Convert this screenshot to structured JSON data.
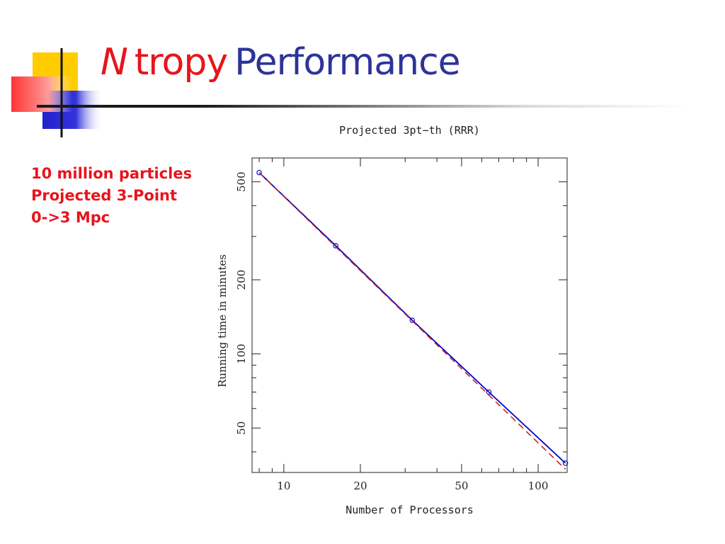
{
  "slide": {
    "title_n": "N",
    "title_tropy": "tropy",
    "title_performance": "Performance",
    "side_lines": [
      "10 million particles",
      "Projected 3-Point",
      "0->3 Mpc"
    ]
  },
  "colors": {
    "title_red": "#e8141c",
    "title_blue": "#2e3399",
    "measured_line": "#0000cc",
    "ideal_line": "#cc2222",
    "logo_yellow": "#ffcc00",
    "logo_blue": "#2222cc"
  },
  "chart_data": {
    "type": "line",
    "title": "Projected 3pt−th (RRR)",
    "xlabel": "Number of Processors",
    "ylabel": "Running time in minutes",
    "x_scale": "log",
    "y_scale": "log",
    "xlim": [
      7.5,
      130
    ],
    "ylim": [
      33,
      625
    ],
    "x_ticks": [
      10,
      20,
      50,
      100
    ],
    "y_ticks": [
      50,
      100,
      200,
      500
    ],
    "grid": false,
    "legend": "none",
    "series": [
      {
        "style": "solid-with-circle-markers",
        "color": "#0000cc",
        "x": [
          8,
          16,
          32,
          64,
          128
        ],
        "y": [
          545,
          275,
          137,
          70,
          36
        ]
      },
      {
        "style": "dashed",
        "color": "#cc2222",
        "x": [
          8,
          128
        ],
        "y": [
          545,
          34
        ]
      }
    ]
  }
}
